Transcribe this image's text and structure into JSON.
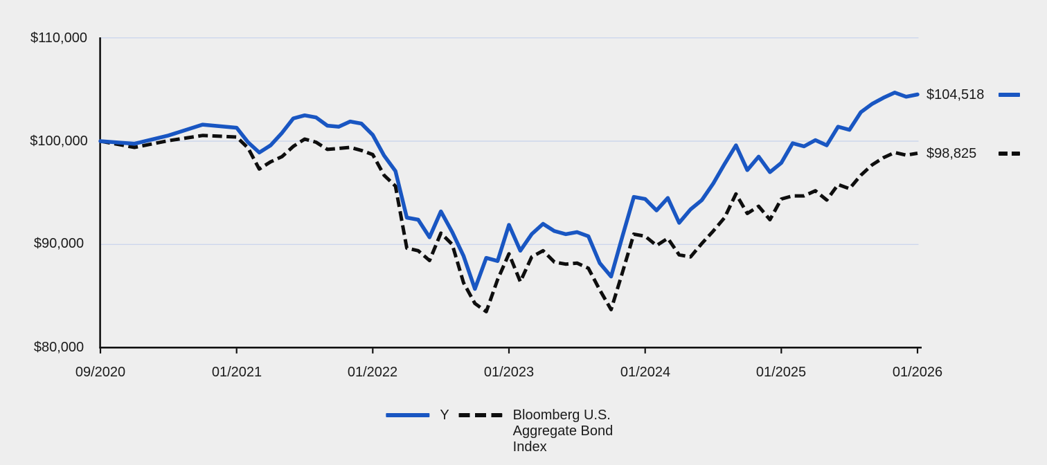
{
  "figure": {
    "background_color": "#eeeeee",
    "text_color": "#1a1a1a",
    "axis_color": "#111111",
    "gridline_color": "#ccd6ec"
  },
  "chart_data": {
    "type": "line",
    "title": "",
    "xlabel": "",
    "ylabel": "",
    "x_start": "09/2020",
    "x_end": "01/2026",
    "frequency": "monthly",
    "x_tick_labels": [
      "09/2020",
      "01/2021",
      "01/2022",
      "01/2023",
      "01/2024",
      "01/2025",
      "01/2026"
    ],
    "y_tick_labels": [
      "$110,000",
      "$100,000",
      "$90,000",
      "$80,000"
    ],
    "y_tick_values": [
      110000,
      100000,
      90000,
      80000
    ],
    "ylim": [
      80000,
      110000
    ],
    "gridline_values": [
      110000,
      100000,
      90000
    ],
    "grid_on": true,
    "legend_position": "bottom-center",
    "series": [
      {
        "name": "Y",
        "line_style": "solid",
        "color": "#1956c2",
        "end_label": "$104,518",
        "end_value": 104518,
        "values": [
          100000,
          99750,
          100550,
          101600,
          101300,
          99900,
          98900,
          99600,
          100800,
          102200,
          102500,
          102300,
          101500,
          101400,
          101900,
          101700,
          100600,
          98600,
          97100,
          92600,
          92400,
          90700,
          93200,
          91200,
          88900,
          85700,
          88700,
          88400,
          91900,
          89400,
          91000,
          92000,
          91300,
          91000,
          91200,
          90800,
          88200,
          86900,
          90800,
          94600,
          94400,
          93300,
          94500,
          92100,
          93400,
          94300,
          95900,
          97800,
          99600,
          97200,
          98500,
          97000,
          97900,
          99800,
          99500,
          100100,
          99600,
          101400,
          101100,
          102800,
          103600,
          104200,
          104700,
          104300,
          104518
        ]
      },
      {
        "name": "Bloomberg U.S. Aggregate Bond Index",
        "line_style": "dashed",
        "color": "#0e0e0e",
        "end_label": "$98,825",
        "end_value": 98825,
        "values": [
          100000,
          99400,
          100050,
          100550,
          100400,
          99350,
          97300,
          98000,
          98500,
          99500,
          100200,
          99900,
          99200,
          99300,
          99400,
          99100,
          98700,
          96700,
          95650,
          89650,
          89400,
          88450,
          91100,
          90000,
          86300,
          84300,
          83500,
          86600,
          89100,
          86400,
          88800,
          89400,
          88300,
          88100,
          88200,
          87700,
          85600,
          83700,
          87300,
          91000,
          90800,
          89900,
          90600,
          89000,
          88800,
          90100,
          91300,
          92600,
          94900,
          93000,
          93700,
          92400,
          94400,
          94700,
          94700,
          95200,
          94300,
          95800,
          95400,
          96700,
          97700,
          98400,
          98900,
          98650,
          98825
        ]
      }
    ]
  }
}
